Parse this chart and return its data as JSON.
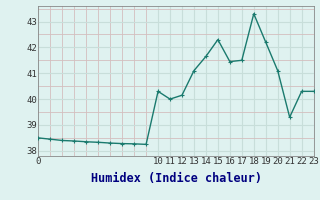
{
  "x": [
    0,
    1,
    2,
    3,
    4,
    5,
    6,
    7,
    8,
    9,
    10,
    11,
    12,
    13,
    14,
    15,
    16,
    17,
    18,
    19,
    20,
    21,
    22,
    23
  ],
  "y": [
    38.5,
    38.45,
    38.4,
    38.38,
    38.35,
    38.33,
    38.3,
    38.28,
    38.27,
    38.25,
    40.3,
    40.0,
    40.15,
    41.1,
    41.65,
    42.3,
    41.45,
    41.5,
    43.3,
    42.2,
    41.1,
    39.3,
    40.3,
    40.3
  ],
  "line_color": "#1a7a6e",
  "bg_color": "#dff2f0",
  "grid_major_color": "#c8deda",
  "grid_minor_color": "#d4bebe",
  "xlabel": "Humidex (Indice chaleur)",
  "ylim": [
    37.8,
    43.6
  ],
  "xlim": [
    0,
    23
  ],
  "yticks": [
    38,
    39,
    40,
    41,
    42,
    43
  ],
  "xticks": [
    0,
    10,
    11,
    12,
    13,
    14,
    15,
    16,
    17,
    18,
    19,
    20,
    21,
    22,
    23
  ],
  "marker_size": 2.5,
  "line_width": 1.0,
  "xlabel_fontsize": 8.5,
  "tick_fontsize": 6.5,
  "xlabel_color": "#000080",
  "tick_color": "#333333"
}
